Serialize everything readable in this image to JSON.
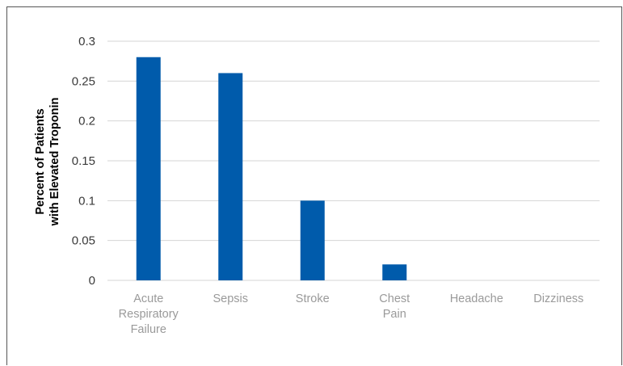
{
  "chart_data": {
    "type": "bar",
    "title": "",
    "xlabel": "",
    "ylabel_lines": [
      "Percent of Patients",
      "with Elevated Troponin"
    ],
    "categories": [
      [
        "Acute",
        "Respiratory",
        "Failure"
      ],
      [
        "Sepsis"
      ],
      [
        "Stroke"
      ],
      [
        "Chest",
        "Pain"
      ],
      [
        "Headache"
      ],
      [
        "Dizziness"
      ]
    ],
    "values": [
      0.28,
      0.26,
      0.1,
      0.02,
      0,
      0
    ],
    "ylim": [
      0,
      0.3
    ],
    "yticks": [
      "0",
      "0.05",
      "0.1",
      "0.15",
      "0.2",
      "0.25",
      "0.3"
    ],
    "bar_color": "#005bab",
    "grid": true
  }
}
